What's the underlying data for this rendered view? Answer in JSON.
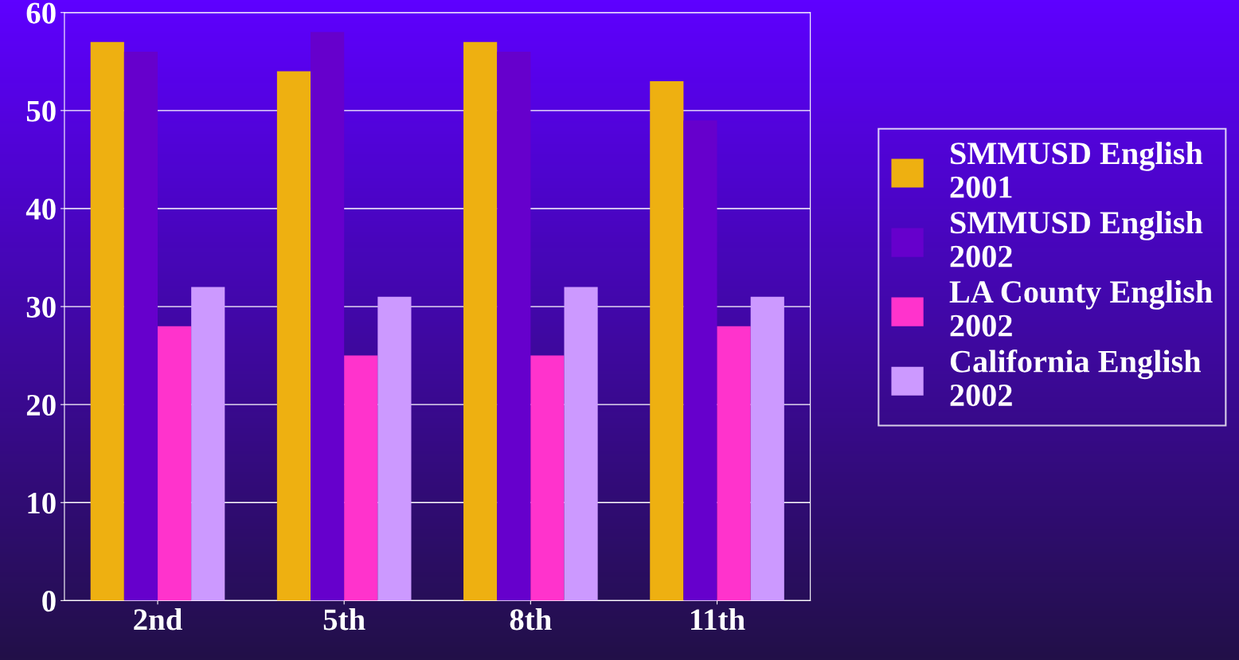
{
  "chart_data": {
    "type": "bar",
    "categories": [
      "2nd",
      "5th",
      "8th",
      "11th"
    ],
    "series": [
      {
        "name": "SMMUSD English 2001",
        "color": "#eeb011",
        "values": [
          57,
          54,
          57,
          53
        ]
      },
      {
        "name": "SMMUSD English 2002",
        "color": "#6600cc",
        "values": [
          56,
          58,
          56,
          49
        ]
      },
      {
        "name": "LA County English 2002",
        "color": "#ff33cc",
        "values": [
          28,
          25,
          25,
          28
        ]
      },
      {
        "name": "California English 2002",
        "color": "#cc99ff",
        "values": [
          32,
          31,
          32,
          31
        ]
      }
    ],
    "ylim": [
      0,
      60
    ],
    "yticks": [
      0,
      10,
      20,
      30,
      40,
      50,
      60
    ],
    "grid": "y",
    "legend": "right"
  }
}
